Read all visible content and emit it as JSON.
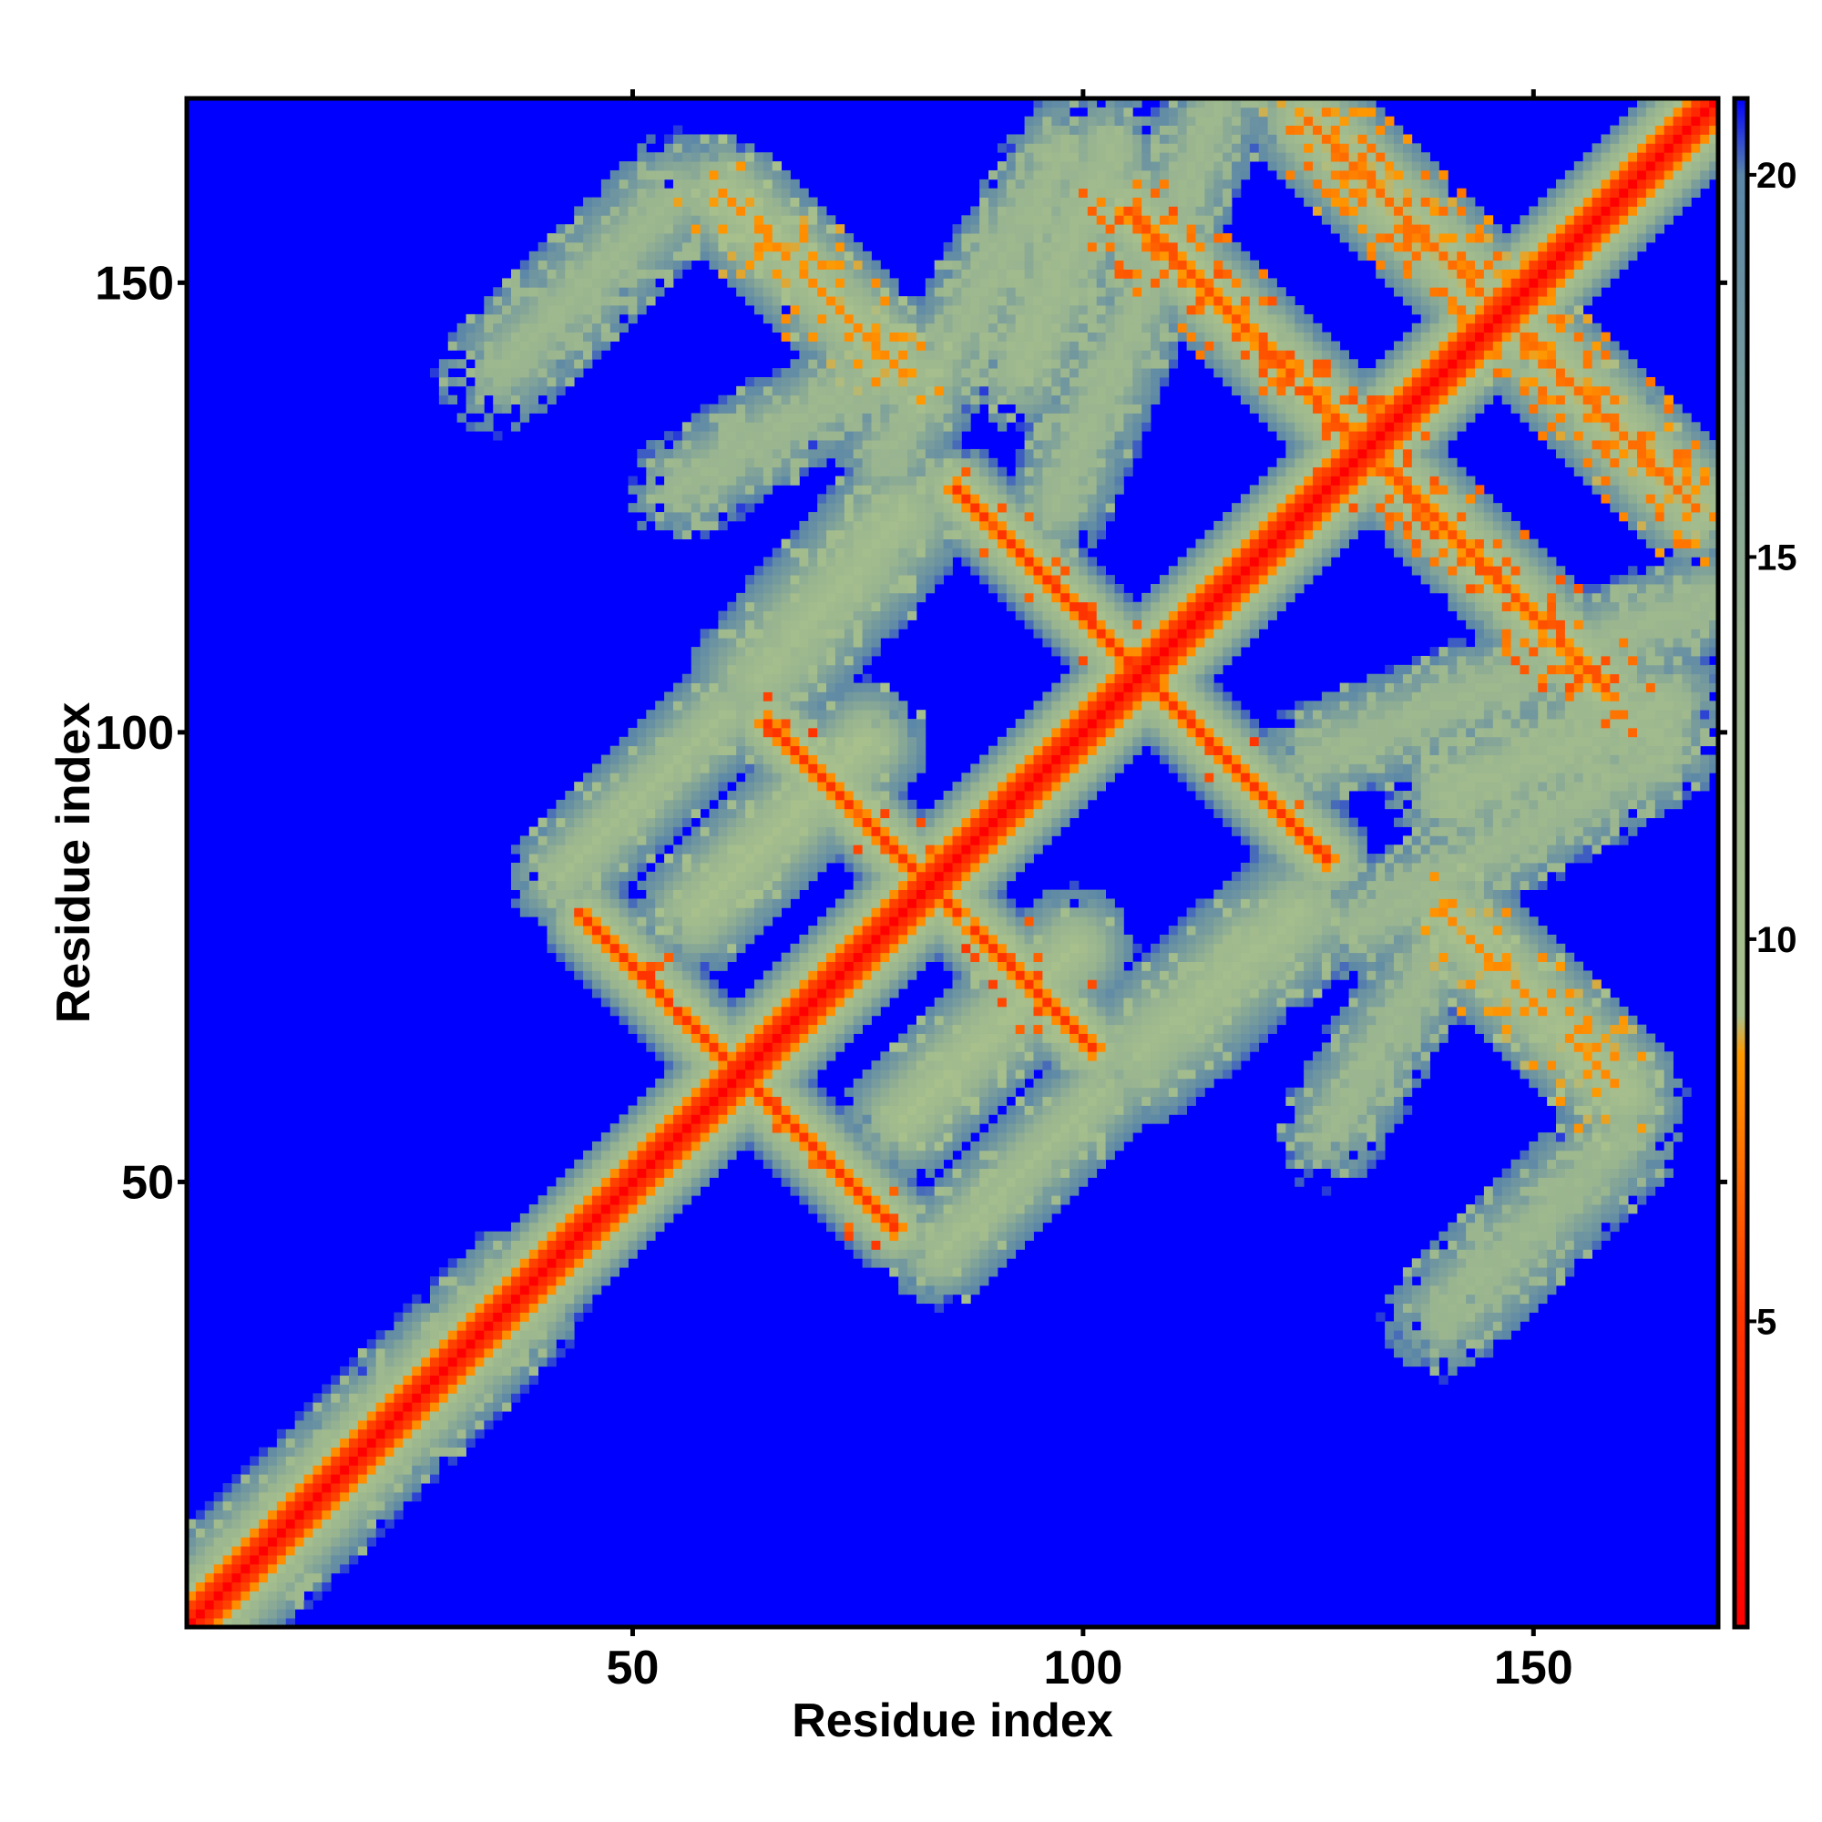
{
  "chart_data": {
    "type": "heatmap",
    "title": "",
    "xlabel": "Residue index",
    "ylabel": "Residue index",
    "xlim": [
      1,
      170
    ],
    "ylim": [
      1,
      170
    ],
    "x_ticks": [
      50,
      100,
      150
    ],
    "y_ticks": [
      50,
      100,
      150
    ],
    "grid": false,
    "legend": "colorbar right",
    "colorbar": {
      "ticks": [
        5,
        10,
        15,
        20
      ],
      "range": [
        1,
        21
      ],
      "stops": [
        {
          "value": 1,
          "color": "#ff0000"
        },
        {
          "value": 5,
          "color": "#ff3300"
        },
        {
          "value": 8.5,
          "color": "#ff9900"
        },
        {
          "value": 9,
          "color": "#a8c08c"
        },
        {
          "value": 14,
          "color": "#98b490"
        },
        {
          "value": 20,
          "color": "#5a86a8"
        },
        {
          "value": 21,
          "color": "#0000ff"
        }
      ]
    },
    "background_color": "#0000ff",
    "cell_size": 1,
    "contact_bands": [
      {
        "kind": "diagonal",
        "from": [
          1,
          1
        ],
        "to": [
          170,
          170
        ],
        "min_value": 1,
        "width": 6,
        "noise": 0.0
      },
      {
        "kind": "antiparallel",
        "from": [
          45,
          79
        ],
        "to": [
          79,
          45
        ],
        "min_value": 5,
        "width": 5,
        "noise": 0.05
      },
      {
        "kind": "antiparallel",
        "from": [
          65,
          101
        ],
        "to": [
          101,
          65
        ],
        "min_value": 5,
        "width": 5,
        "noise": 0.05
      },
      {
        "kind": "antiparallel",
        "from": [
          86,
          127
        ],
        "to": [
          127,
          86
        ],
        "min_value": 5,
        "width": 5,
        "noise": 0.05
      },
      {
        "kind": "antiparallel",
        "from": [
          105,
          158
        ],
        "to": [
          158,
          105
        ],
        "min_value": 6,
        "width": 6,
        "noise": 0.3
      },
      {
        "kind": "antiparallel",
        "from": [
          125,
          168
        ],
        "to": [
          168,
          125
        ],
        "min_value": 7,
        "width": 7,
        "noise": 0.35
      },
      {
        "kind": "antiparallel",
        "from": [
          60,
          160
        ],
        "to": [
          80,
          140
        ],
        "min_value": 8,
        "width": 7,
        "noise": 0.35
      },
      {
        "kind": "antiparallel",
        "from": [
          140,
          80
        ],
        "to": [
          160,
          60
        ],
        "min_value": 8,
        "width": 7,
        "noise": 0.35
      },
      {
        "kind": "parallel",
        "from": [
          42,
          84
        ],
        "to": [
          60,
          102
        ],
        "min_value": 10,
        "width": 6,
        "noise": 0.2
      },
      {
        "kind": "parallel",
        "from": [
          84,
          42
        ],
        "to": [
          102,
          60
        ],
        "min_value": 10,
        "width": 6,
        "noise": 0.2
      },
      {
        "kind": "parallel",
        "from": [
          80,
          57
        ],
        "to": [
          99,
          76
        ],
        "min_value": 9,
        "width": 7,
        "noise": 0.15
      },
      {
        "kind": "parallel",
        "from": [
          57,
          80
        ],
        "to": [
          76,
          99
        ],
        "min_value": 9,
        "width": 7,
        "noise": 0.15
      },
      {
        "kind": "parallel",
        "from": [
          64,
          106
        ],
        "to": [
          80,
          124
        ],
        "min_value": 10,
        "width": 8,
        "noise": 0.2
      },
      {
        "kind": "parallel",
        "from": [
          106,
          64
        ],
        "to": [
          124,
          80
        ],
        "min_value": 10,
        "width": 8,
        "noise": 0.2
      },
      {
        "kind": "parallel",
        "from": [
          93,
          140
        ],
        "to": [
          103,
          165
        ],
        "min_value": 11,
        "width": 7,
        "noise": 0.45
      },
      {
        "kind": "parallel",
        "from": [
          140,
          93
        ],
        "to": [
          165,
          103
        ],
        "min_value": 11,
        "width": 7,
        "noise": 0.45
      },
      {
        "kind": "parallel",
        "from": [
          35,
          140
        ],
        "to": [
          55,
          160
        ],
        "min_value": 12,
        "width": 7,
        "noise": 0.55
      },
      {
        "kind": "parallel",
        "from": [
          140,
          35
        ],
        "to": [
          160,
          55
        ],
        "min_value": 12,
        "width": 7,
        "noise": 0.55
      },
      {
        "kind": "parallel",
        "from": [
          55,
          127
        ],
        "to": [
          80,
          142
        ],
        "min_value": 12,
        "width": 6,
        "noise": 0.55
      },
      {
        "kind": "parallel",
        "from": [
          127,
          55
        ],
        "to": [
          142,
          80
        ],
        "min_value": 12,
        "width": 6,
        "noise": 0.55
      },
      {
        "kind": "parallel",
        "from": [
          125,
          97
        ],
        "to": [
          170,
          115
        ],
        "min_value": 12,
        "width": 6,
        "noise": 0.45
      },
      {
        "kind": "parallel",
        "from": [
          97,
          125
        ],
        "to": [
          115,
          170
        ],
        "min_value": 12,
        "width": 6,
        "noise": 0.45
      },
      {
        "kind": "parallel",
        "from": [
          130,
          78
        ],
        "to": [
          165,
          98
        ],
        "min_value": 12,
        "width": 6,
        "noise": 0.5
      },
      {
        "kind": "parallel",
        "from": [
          78,
          130
        ],
        "to": [
          98,
          165
        ],
        "min_value": 12,
        "width": 6,
        "noise": 0.5
      },
      {
        "kind": "parallel",
        "from": [
          5,
          1
        ],
        "to": [
          40,
          36
        ],
        "min_value": 11,
        "width": 5,
        "noise": 0.4
      },
      {
        "kind": "parallel",
        "from": [
          1,
          5
        ],
        "to": [
          36,
          40
        ],
        "min_value": 11,
        "width": 5,
        "noise": 0.4
      }
    ]
  }
}
